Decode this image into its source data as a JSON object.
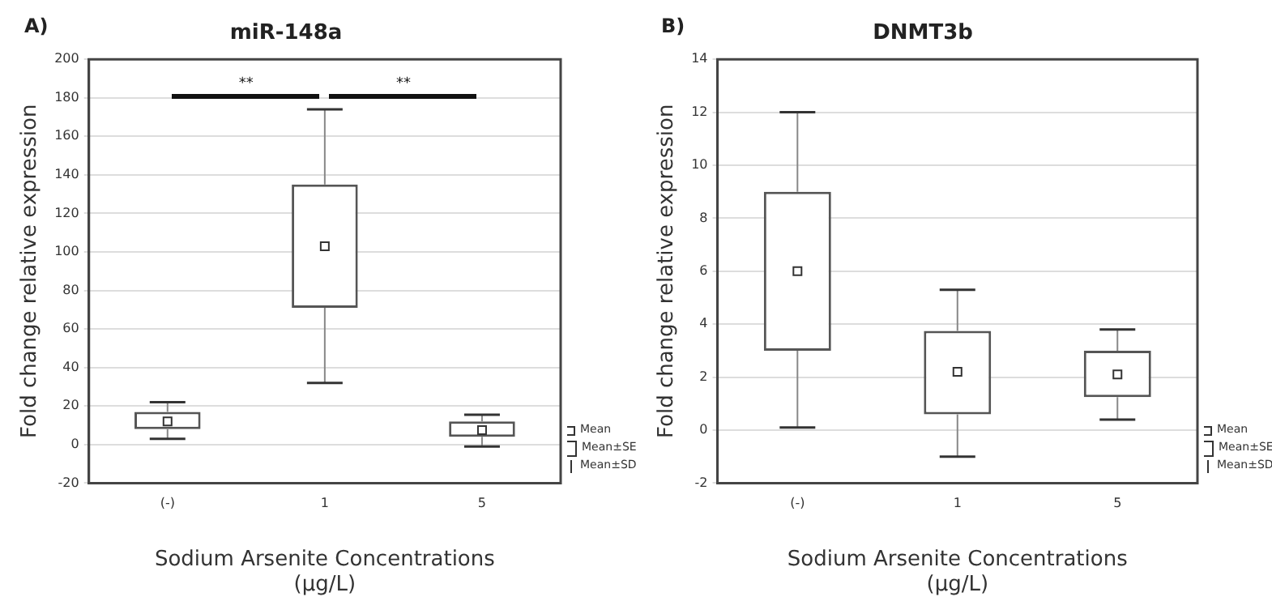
{
  "chart_data": [
    {
      "type": "box",
      "title": "miR-148a",
      "xlabel": "Sodium Arsenite Concentrations\n(μg/L)",
      "ylabel": "Fold change relative expression",
      "categories": [
        "(-)",
        "1",
        "5"
      ],
      "boxes": [
        {
          "low": 3,
          "q1": 8,
          "median": 12,
          "q3": 17,
          "high": 22
        },
        {
          "low": 32,
          "q1": 71,
          "median": 103,
          "q3": 135,
          "high": 174
        },
        {
          "low": -1,
          "q1": 4,
          "median": 7.5,
          "q3": 12,
          "high": 15.5
        }
      ],
      "ylim": [
        -20,
        200
      ],
      "yticks": [
        -20,
        0,
        20,
        40,
        60,
        80,
        100,
        120,
        140,
        160,
        180,
        200
      ],
      "grid": "y",
      "marker": "square",
      "annotations": [
        "A)",
        "**",
        "**",
        "Mean",
        "Mean±SE",
        "Mean±SD"
      ]
    },
    {
      "type": "box",
      "title": "DNMT3b",
      "xlabel": "Sodium Arsenite Concentrations\n(μg/L)",
      "ylabel": "Fold change relative expression",
      "categories": [
        "(-)",
        "1",
        "5"
      ],
      "boxes": [
        {
          "low": 0.1,
          "q1": 3,
          "median": 6,
          "q3": 9,
          "high": 12
        },
        {
          "low": -1,
          "q1": 0.6,
          "median": 2.2,
          "q3": 3.75,
          "high": 5.3
        },
        {
          "low": 0.4,
          "q1": 1.25,
          "median": 2.1,
          "q3": 3,
          "high": 3.8
        }
      ],
      "ylim": [
        -2,
        14
      ],
      "yticks": [
        -2,
        0,
        2,
        4,
        6,
        8,
        10,
        12,
        14
      ],
      "grid": "y",
      "marker": "square",
      "annotations": [
        "B)",
        "Mean",
        "Mean±SE",
        "Mean±SD"
      ]
    }
  ]
}
